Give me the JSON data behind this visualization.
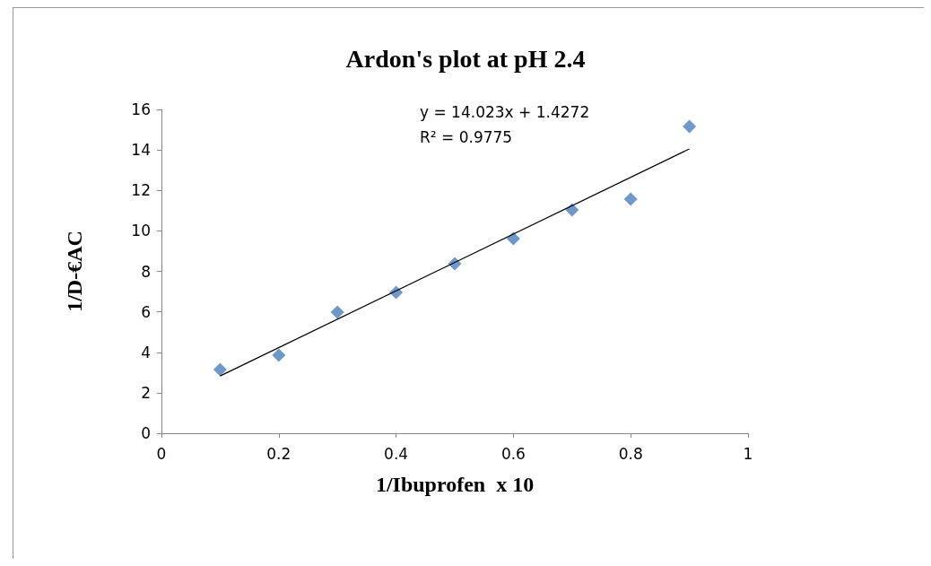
{
  "chart_data": {
    "type": "scatter",
    "title": "Ardon's plot at pH 2.4",
    "xlabel": "1/Ibuprofen  x 10",
    "ylabel": "1/D-€AC",
    "annotations": [
      "y = 14.023x + 1.4272",
      "R² = 0.9775"
    ],
    "x": [
      0.1,
      0.2,
      0.3,
      0.4,
      0.5,
      0.6,
      0.7,
      0.8,
      0.9
    ],
    "series": [
      {
        "color": "#4a7ebb",
        "marker": "diamond",
        "values": [
          3.15,
          3.86,
          5.98,
          6.96,
          8.38,
          9.62,
          11.04,
          11.57,
          15.16
        ]
      },
      {
        "type": "line",
        "color": "#000000",
        "marker": "none",
        "x": [
          0.1,
          0.9
        ],
        "values": [
          2.83,
          14.05
        ]
      }
    ],
    "xlim": [
      0,
      1
    ],
    "xticks": [
      0,
      0.2,
      0.4,
      0.6,
      0.8,
      1
    ],
    "ylim": [
      0,
      16
    ],
    "yticks": [
      0,
      2,
      4,
      6,
      8,
      10,
      12,
      14,
      16
    ],
    "grid": false
  }
}
